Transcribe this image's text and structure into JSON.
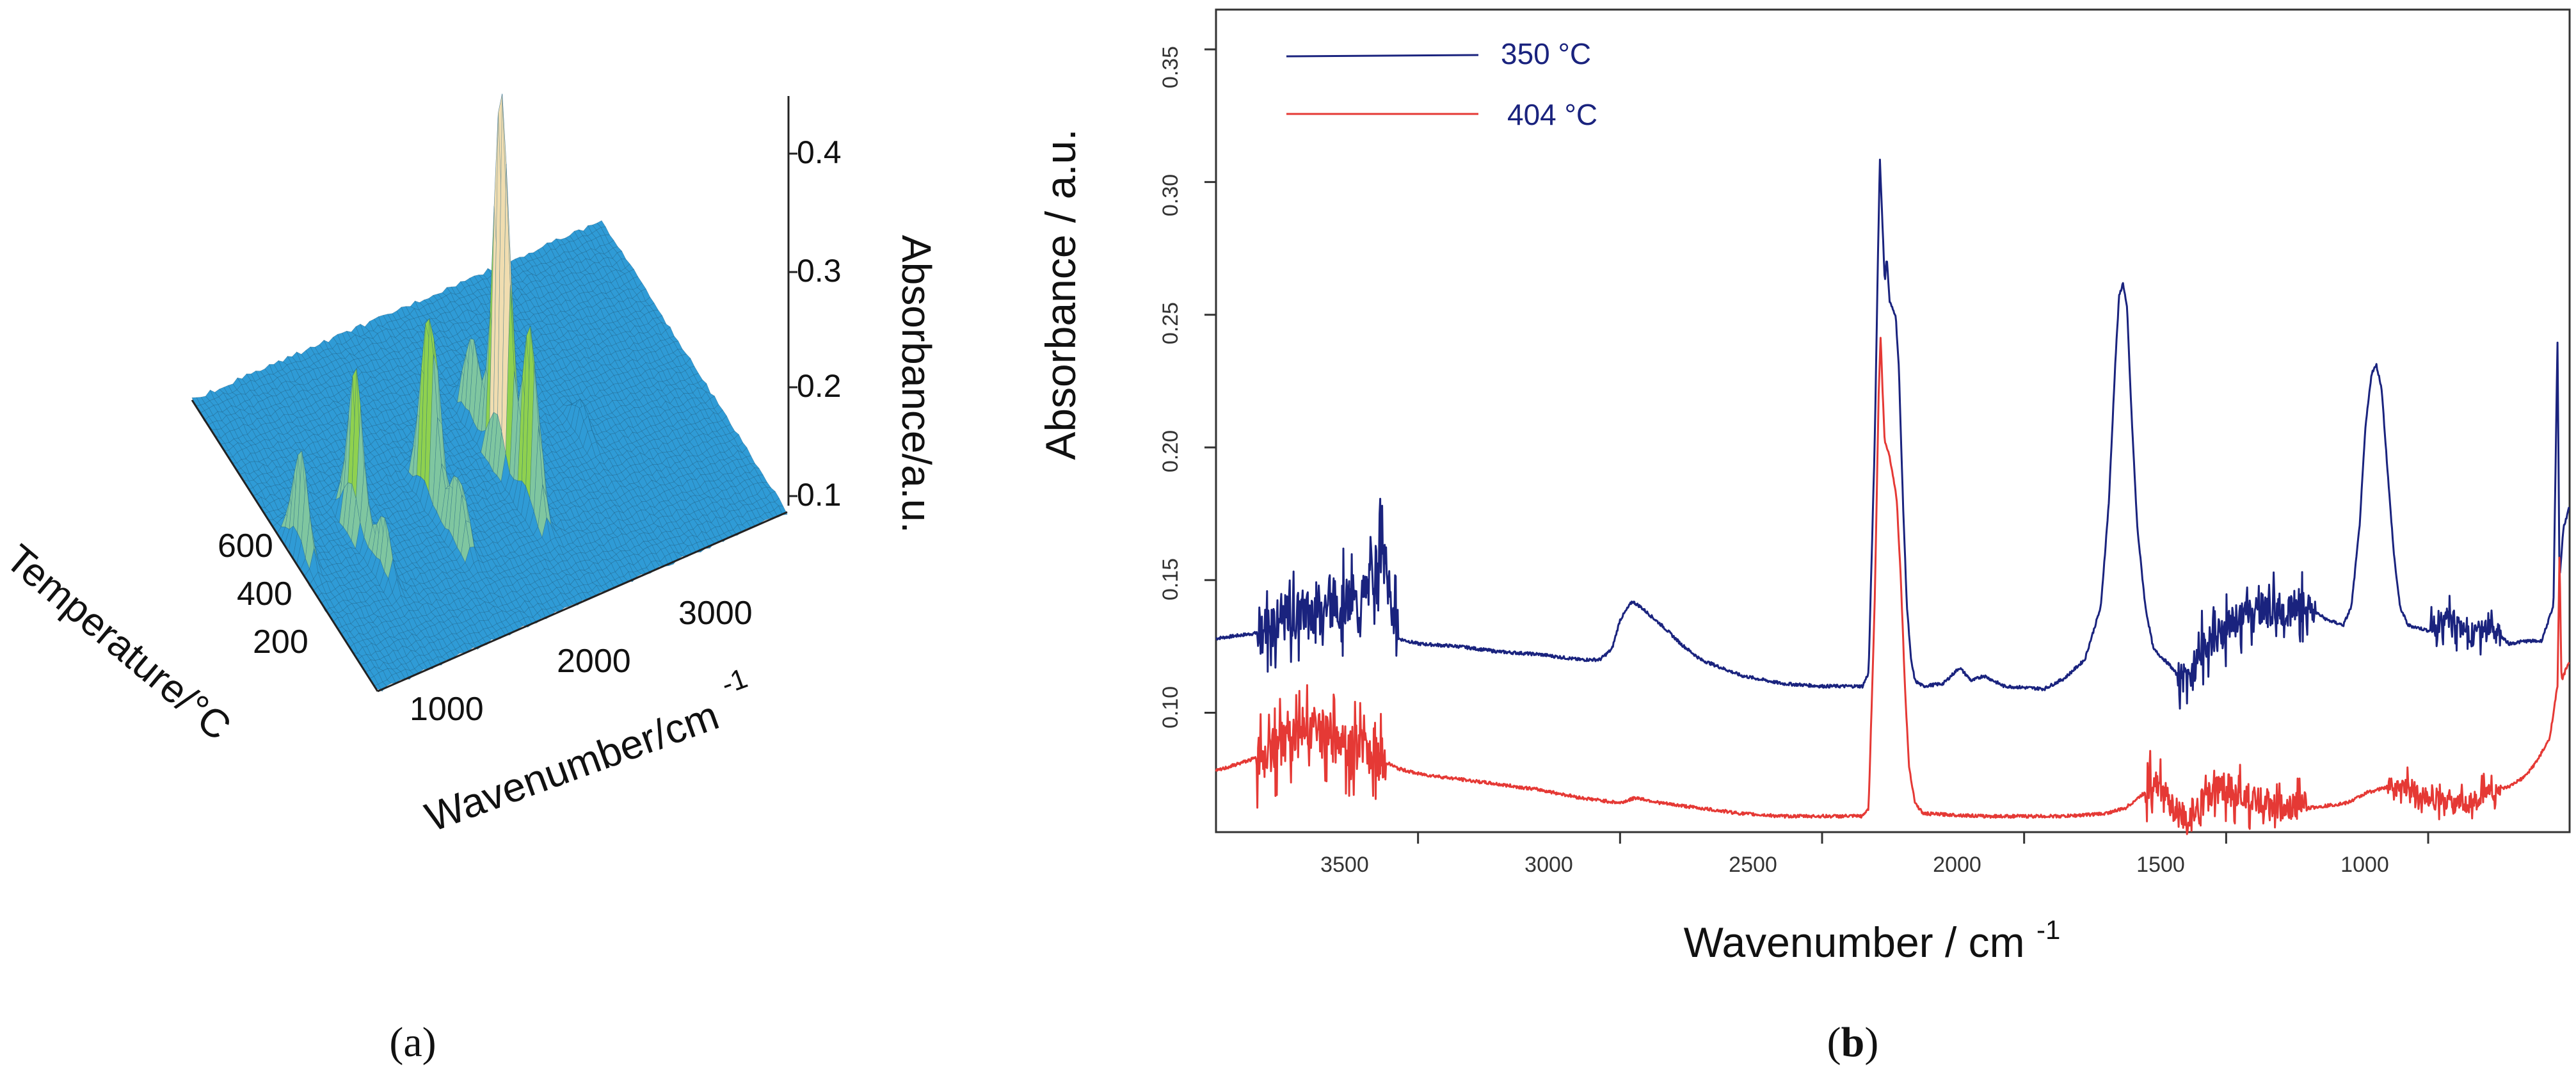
{
  "figure": {
    "panel_a_label": "(a)",
    "panel_a_letter": "a",
    "panel_b_label": "(b)",
    "panel_b_letter": "b"
  },
  "chart_data": [
    {
      "id": "a",
      "type": "surface3d",
      "xlabel": "Wavenumber/cm",
      "xlabel_superscript": "-1",
      "ylabel": "Temperature/°C",
      "zlabel": "Absorbance/a.u.",
      "x_ticks": [
        "1000",
        "2000",
        "3000"
      ],
      "y_ticks": [
        "200",
        "400",
        "600"
      ],
      "z_ticks": [
        "0.1",
        "0.2",
        "0.3",
        "0.4"
      ],
      "xlim": [
        600,
        4000
      ],
      "ylim": [
        50,
        700
      ],
      "zlim": [
        0.05,
        0.45
      ],
      "baseline": 0.08,
      "peaks": [
        {
          "wavenumber": 2350,
          "temperature": 350,
          "absorbance": 0.45
        },
        {
          "wavenumber": 2350,
          "temperature": 250,
          "absorbance": 0.26
        },
        {
          "wavenumber": 2350,
          "temperature": 450,
          "absorbance": 0.16
        },
        {
          "wavenumber": 1750,
          "temperature": 350,
          "absorbance": 0.28
        },
        {
          "wavenumber": 1750,
          "temperature": 250,
          "absorbance": 0.15
        },
        {
          "wavenumber": 1130,
          "temperature": 350,
          "absorbance": 0.22
        },
        {
          "wavenumber": 1130,
          "temperature": 250,
          "absorbance": 0.13
        },
        {
          "wavenumber": 680,
          "temperature": 350,
          "absorbance": 0.17
        },
        {
          "wavenumber": 3000,
          "temperature": 350,
          "absorbance": 0.11
        }
      ],
      "colors": {
        "low": "#2f9bd6",
        "mid": "#8fd14f",
        "high": "#f0ddb0"
      }
    },
    {
      "id": "b",
      "type": "line",
      "xlabel": "Wavenumber / cm",
      "xlabel_superscript": "-1",
      "ylabel": "Absorbance / a.u.",
      "xlim": [
        4000,
        650
      ],
      "ylim": [
        0.055,
        0.365
      ],
      "x_ticks": [
        "3500",
        "3000",
        "2500",
        "2000",
        "1500",
        "1000"
      ],
      "y_ticks": [
        "0.10",
        "0.15",
        "0.20",
        "0.25",
        "0.30",
        "0.35"
      ],
      "legend_position": "top-left",
      "series": [
        {
          "name": "350 °C",
          "color": "#1a237e",
          "noise_regions": [
            [
              3900,
              3550,
              0.013
            ],
            [
              1620,
              1280,
              0.009
            ],
            [
              1000,
              820,
              0.006
            ]
          ],
          "points": [
            [
              4000,
              0.128
            ],
            [
              3900,
              0.13
            ],
            [
              3850,
              0.135
            ],
            [
              3800,
              0.137
            ],
            [
              3750,
              0.14
            ],
            [
              3700,
              0.142
            ],
            [
              3650,
              0.141
            ],
            [
              3620,
              0.148
            ],
            [
              3600,
              0.158
            ],
            [
              3590,
              0.162
            ],
            [
              3575,
              0.148
            ],
            [
              3550,
              0.128
            ],
            [
              3500,
              0.126
            ],
            [
              3400,
              0.125
            ],
            [
              3300,
              0.123
            ],
            [
              3200,
              0.122
            ],
            [
              3100,
              0.12
            ],
            [
              3050,
              0.12
            ],
            [
              3020,
              0.124
            ],
            [
              3000,
              0.135
            ],
            [
              2970,
              0.142
            ],
            [
              2950,
              0.14
            ],
            [
              2920,
              0.136
            ],
            [
              2890,
              0.132
            ],
            [
              2850,
              0.126
            ],
            [
              2800,
              0.12
            ],
            [
              2700,
              0.114
            ],
            [
              2600,
              0.111
            ],
            [
              2500,
              0.11
            ],
            [
              2400,
              0.11
            ],
            [
              2385,
              0.115
            ],
            [
              2370,
              0.2
            ],
            [
              2362,
              0.27
            ],
            [
              2357,
              0.309
            ],
            [
              2352,
              0.29
            ],
            [
              2345,
              0.262
            ],
            [
              2340,
              0.272
            ],
            [
              2333,
              0.255
            ],
            [
              2325,
              0.252
            ],
            [
              2318,
              0.25
            ],
            [
              2310,
              0.23
            ],
            [
              2300,
              0.18
            ],
            [
              2290,
              0.14
            ],
            [
              2280,
              0.12
            ],
            [
              2270,
              0.112
            ],
            [
              2250,
              0.11
            ],
            [
              2200,
              0.111
            ],
            [
              2160,
              0.117
            ],
            [
              2130,
              0.112
            ],
            [
              2100,
              0.114
            ],
            [
              2050,
              0.11
            ],
            [
              1950,
              0.109
            ],
            [
              1900,
              0.113
            ],
            [
              1850,
              0.12
            ],
            [
              1810,
              0.14
            ],
            [
              1790,
              0.18
            ],
            [
              1775,
              0.23
            ],
            [
              1765,
              0.257
            ],
            [
              1755,
              0.262
            ],
            [
              1745,
              0.252
            ],
            [
              1735,
              0.215
            ],
            [
              1720,
              0.17
            ],
            [
              1700,
              0.14
            ],
            [
              1680,
              0.124
            ],
            [
              1640,
              0.118
            ],
            [
              1610,
              0.112
            ],
            [
              1590,
              0.114
            ],
            [
              1560,
              0.124
            ],
            [
              1500,
              0.132
            ],
            [
              1450,
              0.138
            ],
            [
              1400,
              0.139
            ],
            [
              1350,
              0.139
            ],
            [
              1300,
              0.14
            ],
            [
              1250,
              0.135
            ],
            [
              1210,
              0.133
            ],
            [
              1190,
              0.14
            ],
            [
              1170,
              0.17
            ],
            [
              1155,
              0.208
            ],
            [
              1140,
              0.228
            ],
            [
              1128,
              0.231
            ],
            [
              1115,
              0.222
            ],
            [
              1100,
              0.19
            ],
            [
              1085,
              0.16
            ],
            [
              1070,
              0.14
            ],
            [
              1050,
              0.133
            ],
            [
              1000,
              0.131
            ],
            [
              950,
              0.136
            ],
            [
              900,
              0.128
            ],
            [
              850,
              0.133
            ],
            [
              800,
              0.126
            ],
            [
              760,
              0.127
            ],
            [
              720,
              0.127
            ],
            [
              690,
              0.14
            ],
            [
              680,
              0.24
            ],
            [
              675,
              0.15
            ],
            [
              665,
              0.17
            ],
            [
              655,
              0.175
            ],
            [
              650,
              0.178
            ]
          ]
        },
        {
          "name": "404 °C",
          "color": "#e53935",
          "noise_regions": [
            [
              3900,
              3580,
              0.012
            ],
            [
              1700,
              1300,
              0.008
            ],
            [
              1100,
              820,
              0.005
            ]
          ],
          "points": [
            [
              4000,
              0.078
            ],
            [
              3900,
              0.083
            ],
            [
              3850,
              0.087
            ],
            [
              3800,
              0.09
            ],
            [
              3750,
              0.094
            ],
            [
              3700,
              0.09
            ],
            [
              3650,
              0.087
            ],
            [
              3600,
              0.083
            ],
            [
              3550,
              0.079
            ],
            [
              3500,
              0.077
            ],
            [
              3400,
              0.075
            ],
            [
              3300,
              0.073
            ],
            [
              3200,
              0.071
            ],
            [
              3100,
              0.068
            ],
            [
              3000,
              0.066
            ],
            [
              2960,
              0.068
            ],
            [
              2900,
              0.066
            ],
            [
              2800,
              0.064
            ],
            [
              2700,
              0.062
            ],
            [
              2600,
              0.061
            ],
            [
              2500,
              0.061
            ],
            [
              2400,
              0.061
            ],
            [
              2385,
              0.064
            ],
            [
              2370,
              0.14
            ],
            [
              2360,
              0.22
            ],
            [
              2355,
              0.242
            ],
            [
              2350,
              0.22
            ],
            [
              2345,
              0.202
            ],
            [
              2335,
              0.198
            ],
            [
              2325,
              0.19
            ],
            [
              2315,
              0.18
            ],
            [
              2305,
              0.15
            ],
            [
              2295,
              0.11
            ],
            [
              2285,
              0.08
            ],
            [
              2270,
              0.066
            ],
            [
              2250,
              0.062
            ],
            [
              2100,
              0.061
            ],
            [
              2000,
              0.061
            ],
            [
              1900,
              0.061
            ],
            [
              1800,
              0.062
            ],
            [
              1750,
              0.064
            ],
            [
              1700,
              0.07
            ],
            [
              1680,
              0.075
            ],
            [
              1650,
              0.07
            ],
            [
              1620,
              0.062
            ],
            [
              1600,
              0.06
            ],
            [
              1560,
              0.066
            ],
            [
              1500,
              0.072
            ],
            [
              1450,
              0.068
            ],
            [
              1400,
              0.066
            ],
            [
              1300,
              0.064
            ],
            [
              1200,
              0.066
            ],
            [
              1150,
              0.07
            ],
            [
              1100,
              0.072
            ],
            [
              1050,
              0.072
            ],
            [
              1000,
              0.068
            ],
            [
              950,
              0.066
            ],
            [
              900,
              0.066
            ],
            [
              850,
              0.07
            ],
            [
              800,
              0.072
            ],
            [
              760,
              0.076
            ],
            [
              730,
              0.082
            ],
            [
              700,
              0.09
            ],
            [
              690,
              0.1
            ],
            [
              680,
              0.11
            ],
            [
              675,
              0.16
            ],
            [
              670,
              0.112
            ],
            [
              660,
              0.116
            ],
            [
              650,
              0.12
            ]
          ]
        }
      ]
    }
  ]
}
